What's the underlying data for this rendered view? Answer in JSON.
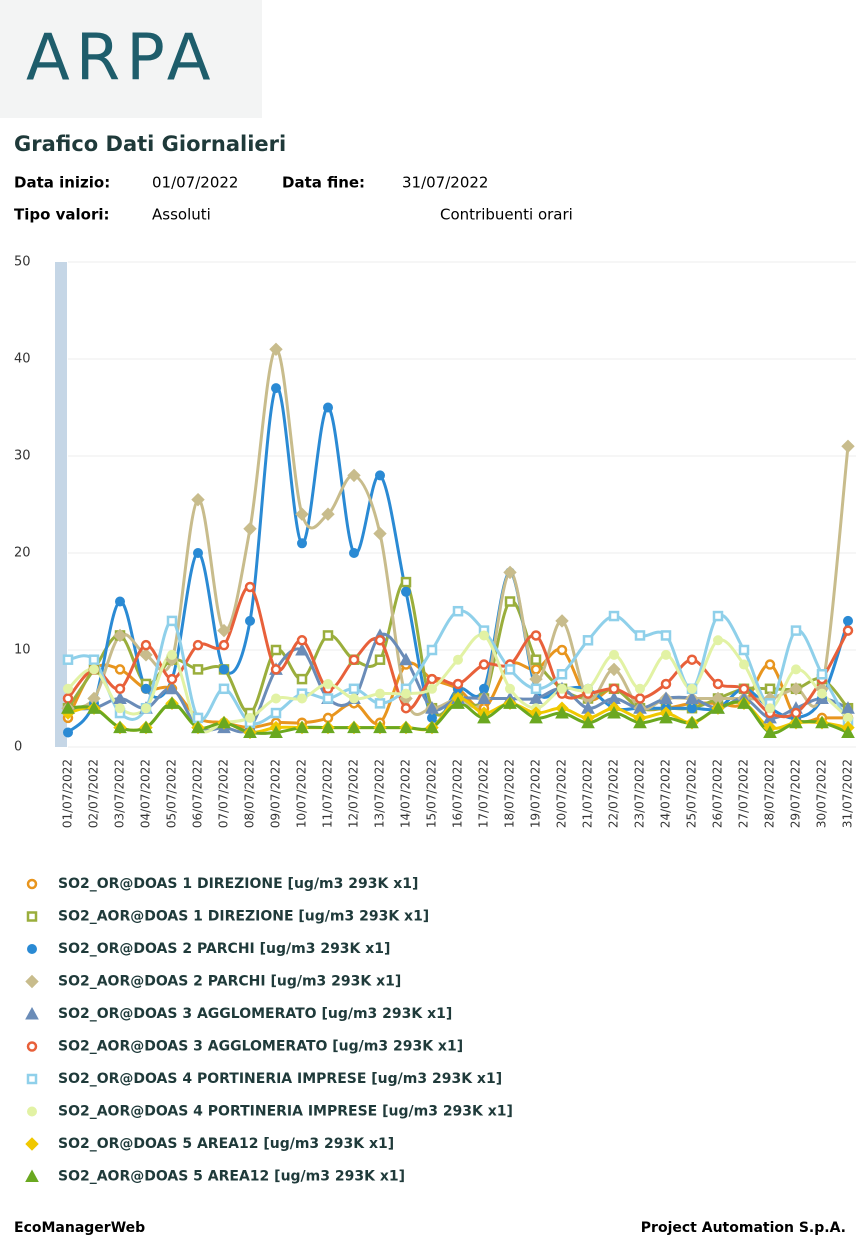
{
  "logo": "ARPA",
  "title": "Grafico Dati Giornalieri",
  "info": [
    {
      "label": "Data inizio:",
      "value": "01/07/2022"
    },
    {
      "label": "Data fine:",
      "value": "31/07/2022"
    },
    {
      "label": "Tipo valori:",
      "value": "Assoluti"
    }
  ],
  "mode": "Contribuenti orari",
  "footer": {
    "left": "EcoManagerWeb",
    "right": "Project Automation S.p.A."
  },
  "chart_data": {
    "type": "line",
    "smooth": true,
    "grid": true,
    "categories": [
      "01/07/2022",
      "02/07/2022",
      "03/07/2022",
      "04/07/2022",
      "05/07/2022",
      "06/07/2022",
      "07/07/2022",
      "08/07/2022",
      "09/07/2022",
      "10/07/2022",
      "11/07/2022",
      "12/07/2022",
      "13/07/2022",
      "14/07/2022",
      "15/07/2022",
      "16/07/2022",
      "17/07/2022",
      "18/07/2022",
      "19/07/2022",
      "20/07/2022",
      "21/07/2022",
      "22/07/2022",
      "23/07/2022",
      "24/07/2022",
      "25/07/2022",
      "26/07/2022",
      "27/07/2022",
      "28/07/2022",
      "29/07/2022",
      "30/07/2022",
      "31/07/2022"
    ],
    "ylim": [
      0,
      50
    ],
    "yticks": [
      0,
      10,
      20,
      30,
      40,
      50
    ],
    "series": [
      {
        "name": "SO2_OR@DOAS 1 DIREZIONE [ug/m3 293K x1]",
        "color": "#e8951e",
        "marker": "circle",
        "values": [
          3,
          8,
          8,
          6,
          6,
          3,
          2.5,
          2,
          2.5,
          2.5,
          3,
          4.5,
          2.5,
          8.5,
          7,
          6,
          4,
          8.5,
          8,
          10,
          5,
          6,
          4,
          4,
          4.5,
          4.5,
          4.5,
          8.5,
          3,
          3,
          3
        ]
      },
      {
        "name": "SO2_AOR@DOAS 1 DIREZIONE [ug/m3 293K x1]",
        "color": "#9aae3c",
        "marker": "square",
        "values": [
          4,
          8,
          11.5,
          6.5,
          9,
          8,
          8,
          3.5,
          10,
          7,
          11.5,
          9,
          9,
          17,
          4,
          5,
          5,
          15,
          9,
          6,
          5,
          6,
          4,
          4,
          4,
          5,
          6,
          6,
          6,
          7,
          4
        ]
      },
      {
        "name": "SO2_OR@DOAS 2 PARCHI [ug/m3 293K x1]",
        "color": "#2a8ad4",
        "marker": "dot",
        "values": [
          1.5,
          4.5,
          15,
          6,
          7,
          20,
          8,
          13,
          37,
          21,
          35,
          20,
          28,
          16,
          3,
          6,
          6,
          18,
          6,
          6,
          6,
          4,
          4,
          4,
          4,
          4,
          6,
          4,
          3,
          5,
          13
        ]
      },
      {
        "name": "SO2_AOR@DOAS 2 PARCHI [ug/m3 293K x1]",
        "color": "#c8bc8c",
        "marker": "diamond",
        "values": [
          4,
          5,
          11.5,
          9.5,
          9,
          25.5,
          12,
          22.5,
          41,
          24,
          24,
          28,
          22,
          5,
          4,
          5,
          5,
          18,
          7,
          13,
          5,
          8,
          4,
          5,
          5,
          5,
          5,
          5,
          6,
          6,
          31
        ]
      },
      {
        "name": "SO2_OR@DOAS 3 AGGLOMERATO [ug/m3 293K x1]",
        "color": "#6a8cb8",
        "marker": "triangle",
        "values": [
          4,
          4,
          5,
          4,
          6,
          2,
          2,
          2,
          8,
          10,
          5,
          5,
          11.5,
          9,
          4,
          5,
          5,
          5,
          5,
          6,
          4,
          5,
          4,
          5,
          5,
          4,
          5,
          3,
          4,
          5,
          4
        ]
      },
      {
        "name": "SO2_AOR@DOAS 3 AGGLOMERATO [ug/m3 293K x1]",
        "color": "#e8603a",
        "marker": "circle",
        "values": [
          5,
          8,
          6,
          10.5,
          7,
          10.5,
          10.5,
          16.5,
          8,
          11,
          6,
          9,
          11,
          4,
          7,
          6.5,
          8.5,
          8.5,
          11.5,
          5.5,
          5.5,
          6,
          5,
          6.5,
          9,
          6.5,
          6,
          3.5,
          3.5,
          7,
          12
        ]
      },
      {
        "name": "SO2_OR@DOAS 4 PORTINERIA IMPRESE [ug/m3 293K x1]",
        "color": "#8fd0ea",
        "marker": "square",
        "values": [
          9,
          9,
          3.5,
          4,
          13,
          3,
          6,
          2.5,
          3.5,
          5.5,
          5,
          6,
          4.5,
          6,
          10,
          14,
          12,
          8,
          6,
          7.5,
          11,
          13.5,
          11.5,
          11.5,
          6,
          13.5,
          10,
          4.5,
          12,
          7.5,
          2.5
        ]
      },
      {
        "name": "SO2_AOR@DOAS 4 PORTINERIA IMPRESE [ug/m3 293K x1]",
        "color": "#e2f2a4",
        "marker": "dot",
        "values": [
          6,
          8,
          4,
          4,
          9.5,
          2,
          2.5,
          3,
          5,
          5,
          6.5,
          5,
          5.5,
          5.5,
          6,
          9,
          11.5,
          6,
          4,
          6,
          6,
          9.5,
          6,
          9.5,
          6,
          11,
          8.5,
          4,
          8,
          5.5,
          3
        ]
      },
      {
        "name": "SO2_OR@DOAS 5 AREA12 [ug/m3 293K x1]",
        "color": "#f0c800",
        "marker": "diamond",
        "values": [
          3.5,
          4,
          2,
          2,
          4.5,
          2,
          2.5,
          1.5,
          2,
          2,
          2,
          2,
          2,
          2,
          2,
          5,
          3.5,
          4.5,
          3.5,
          4,
          3,
          4,
          3,
          3.5,
          2.5,
          4,
          4.5,
          2,
          2.5,
          2.5,
          2
        ]
      },
      {
        "name": "SO2_AOR@DOAS 5 AREA12 [ug/m3 293K x1]",
        "color": "#6aa820",
        "marker": "triangle",
        "values": [
          4,
          4,
          2,
          2,
          4.5,
          2,
          2.5,
          1.5,
          1.5,
          2,
          2,
          2,
          2,
          2,
          2,
          4.5,
          3,
          4.5,
          3,
          3.5,
          2.5,
          3.5,
          2.5,
          3,
          2.5,
          4,
          4.5,
          1.5,
          2.5,
          2.5,
          1.5
        ]
      }
    ]
  }
}
